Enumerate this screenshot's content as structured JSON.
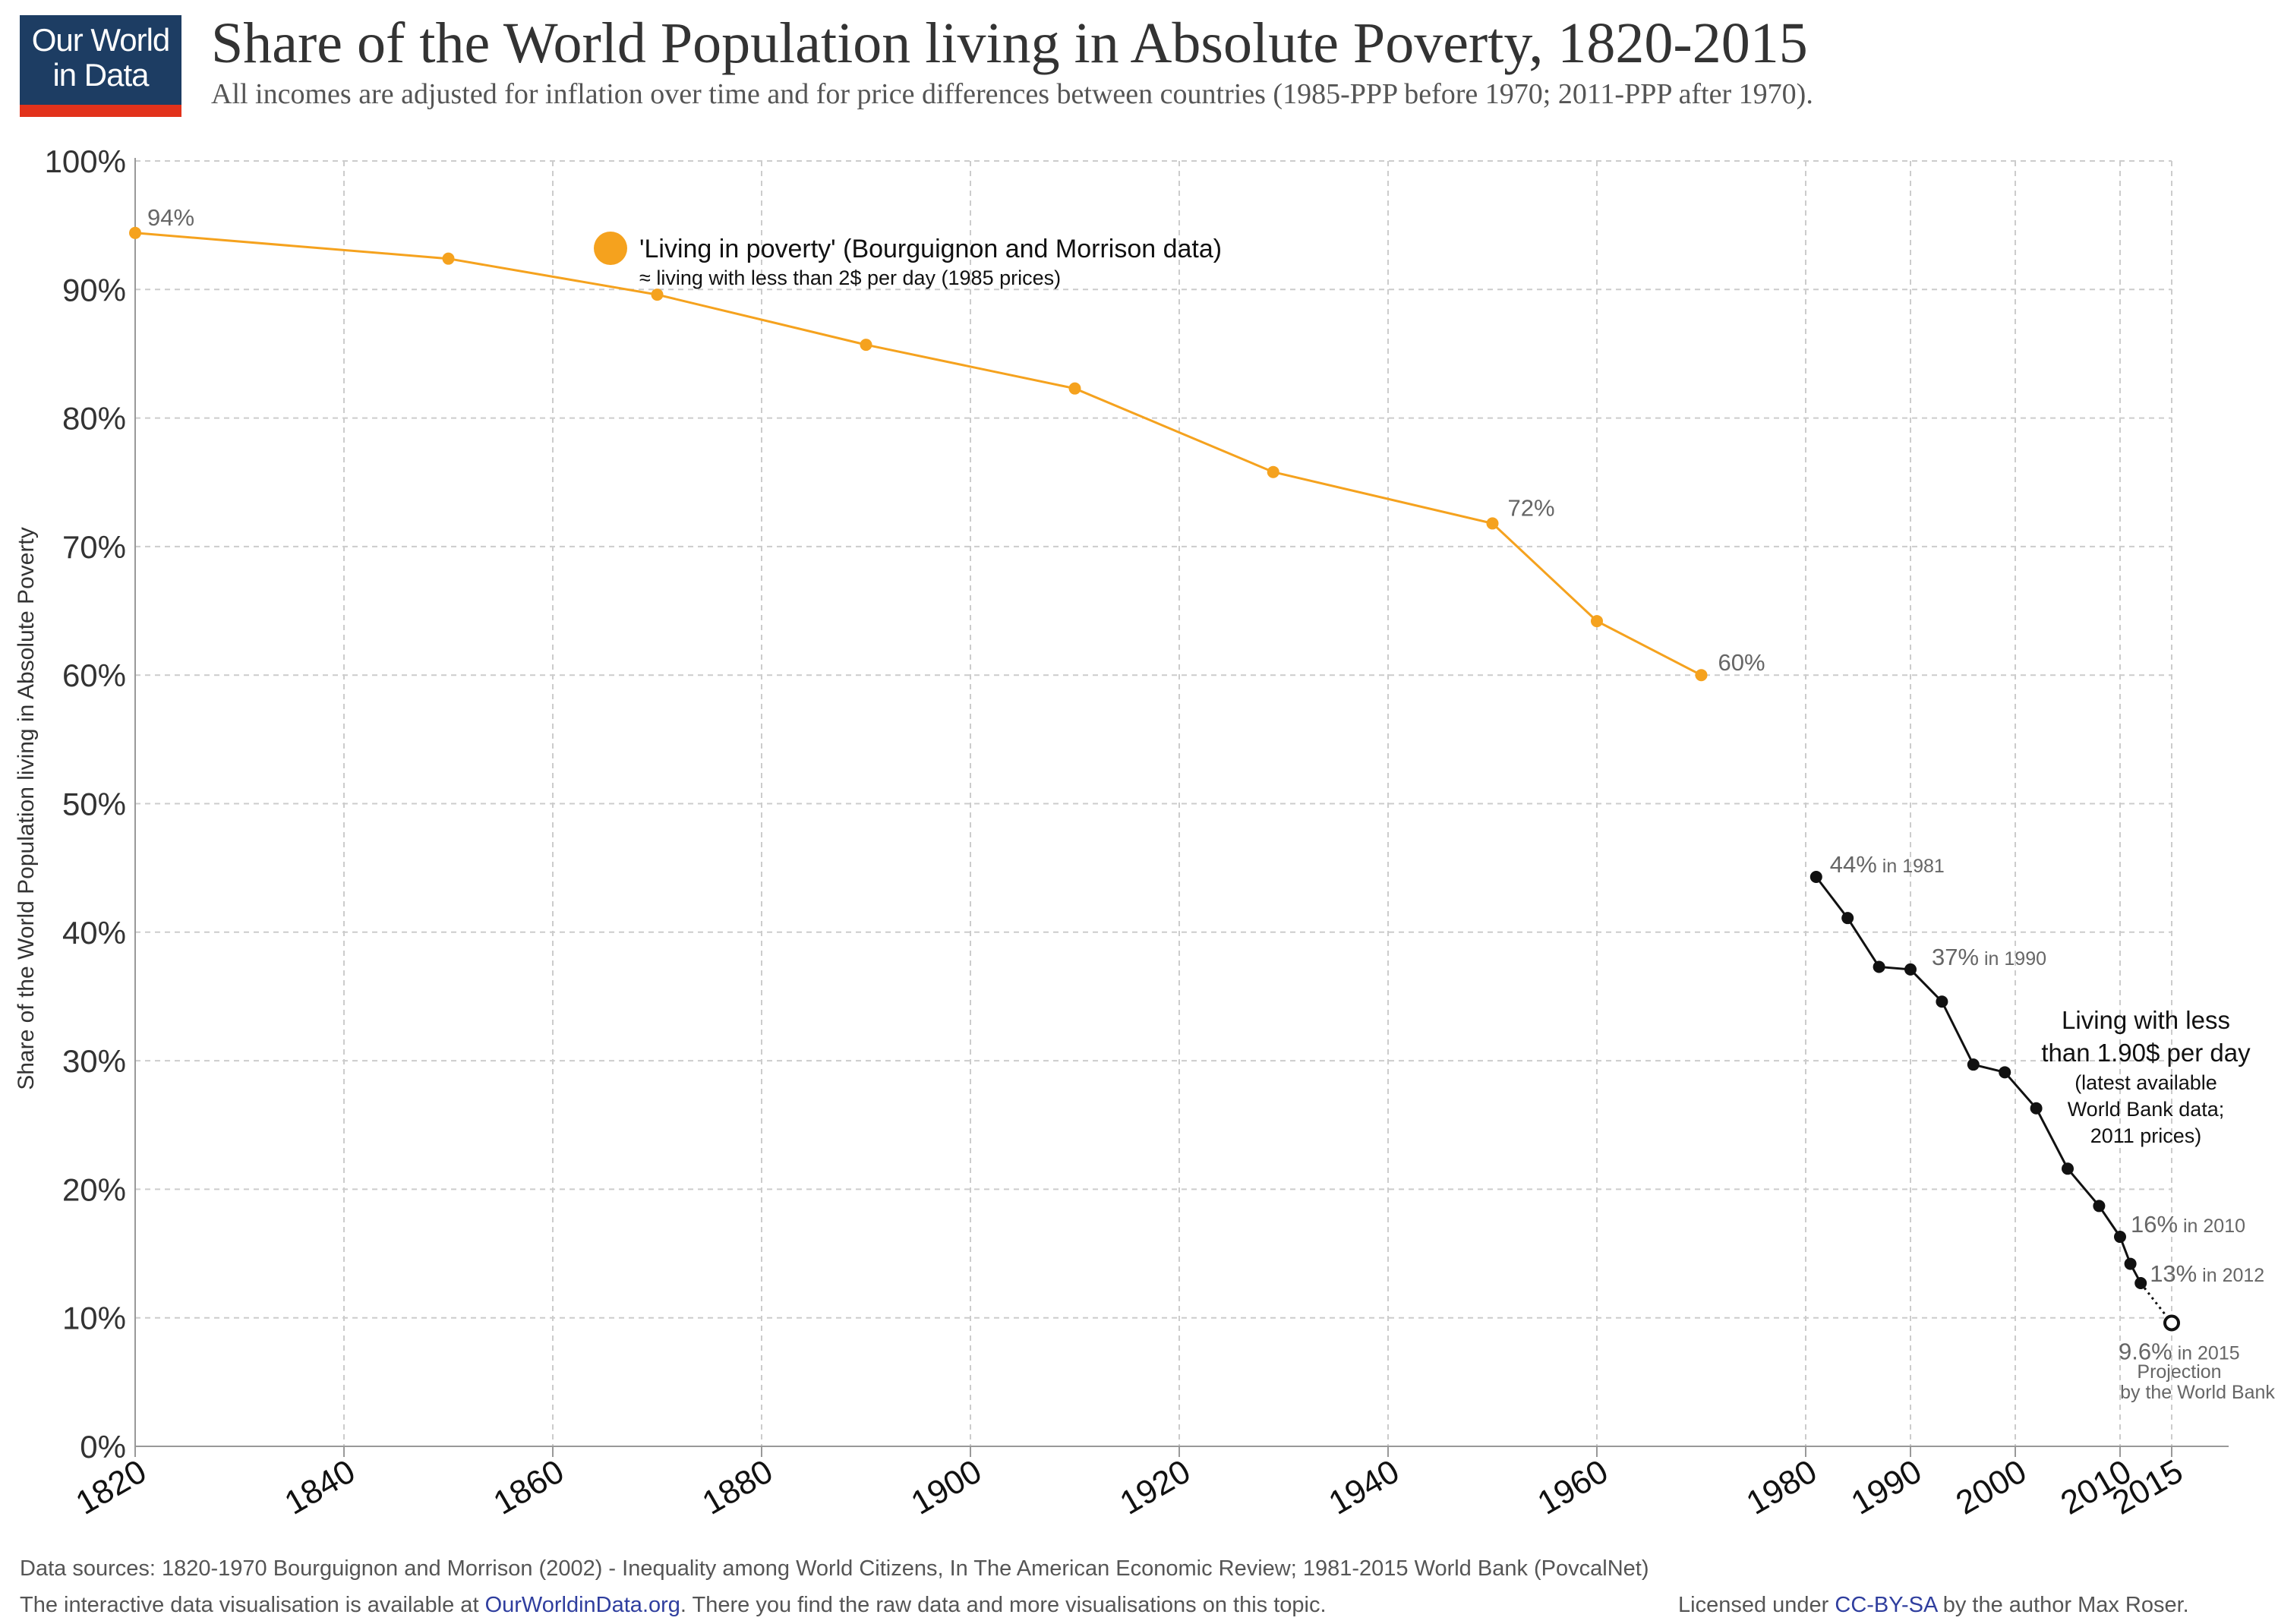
{
  "header": {
    "logo_line1": "Our World",
    "logo_line2": "in Data",
    "title": "Share of the World Population living in Absolute Poverty, 1820-2015",
    "subtitle": "All incomes are adjusted for inflation over time and for price differences between countries (1985-PPP before 1970; 2011-PPP after 1970)."
  },
  "footer": {
    "sources": "Data sources: 1820-1970 Bourguignon and Morrison (2002) - Inequality among World Citizens, In The American Economic Review; 1981-2015 World Bank (PovcalNet)",
    "interactive_prefix": "The interactive data visualisation is available at ",
    "interactive_link": "OurWorldinData.org",
    "interactive_suffix": ". There you find the raw data and more visualisations on this topic.",
    "license_prefix": "Licensed under ",
    "license_link": "CC-BY-SA",
    "license_suffix": " by the author Max Roser."
  },
  "colors": {
    "historic": "#f5a21e",
    "worldbank": "#111111",
    "grid": "#cccccc",
    "axis": "#999999",
    "text": "#444444"
  },
  "chart_data": {
    "type": "line",
    "ylabel": "Share of the World Population living in Absolute Poverty",
    "ylim": [
      0,
      100
    ],
    "y_ticks": [
      "0%",
      "10%",
      "20%",
      "30%",
      "40%",
      "50%",
      "60%",
      "70%",
      "80%",
      "90%",
      "100%"
    ],
    "x_ticks": [
      "1820",
      "1840",
      "1860",
      "1880",
      "1900",
      "1920",
      "1940",
      "1960",
      "1980",
      "1990",
      "2000",
      "2010",
      "2015"
    ],
    "grid": true,
    "series": [
      {
        "name": "'Living in poverty' (Bourguignon and Morrison data)",
        "note": "≈ living with less than 2$ per day (1985 prices)",
        "x": [
          1820,
          1850,
          1870,
          1890,
          1910,
          1929,
          1950,
          1960,
          1970
        ],
        "y": [
          94.4,
          92.4,
          89.6,
          85.7,
          82.3,
          75.8,
          71.8,
          64.2,
          60.0
        ]
      },
      {
        "name": "Living with less than 1.90$ per day",
        "note_lines": [
          "(latest available",
          "World Bank data;",
          "2011 prices)"
        ],
        "x": [
          1981,
          1984,
          1987,
          1990,
          1993,
          1996,
          1999,
          2002,
          2005,
          2008,
          2010,
          2011,
          2012
        ],
        "y": [
          44.3,
          41.1,
          37.3,
          37.1,
          34.6,
          29.7,
          29.1,
          26.3,
          21.6,
          18.7,
          16.3,
          14.2,
          12.7
        ],
        "projection": {
          "x": 2015,
          "y": 9.6
        }
      }
    ],
    "annotations": [
      {
        "value": "94%",
        "suffix": ""
      },
      {
        "value": "72%",
        "suffix": ""
      },
      {
        "value": "60%",
        "suffix": ""
      },
      {
        "value": "44%",
        "suffix": " in 1981"
      },
      {
        "value": "37%",
        "suffix": " in 1990"
      },
      {
        "value": "16%",
        "suffix": " in 2010"
      },
      {
        "value": "13%",
        "suffix": " in 2012"
      },
      {
        "value": "9.6%",
        "suffix": " in 2015"
      }
    ],
    "legend_historic_label": "'Living in poverty' (Bourguignon and Morrison data)",
    "legend_historic_note": "≈ living with less than 2$ per day (1985 prices)",
    "legend_wb_title_1": "Living with less",
    "legend_wb_title_2": "than 1.90$ per day",
    "projection_note_1": "Projection",
    "projection_note_2": "by the World Bank"
  }
}
